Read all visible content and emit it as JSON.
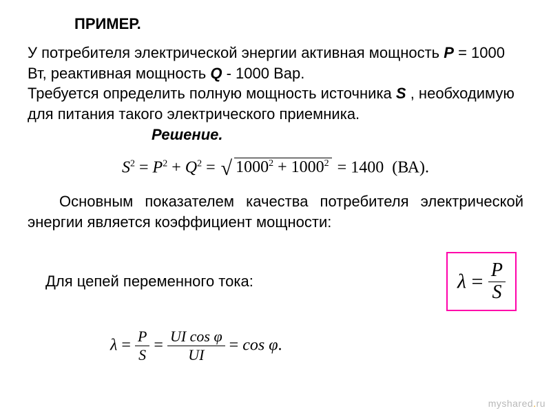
{
  "colors": {
    "text": "#000000",
    "background": "#ffffff",
    "box_border": "#ff00aa",
    "watermark_gray": "#b8b8b8",
    "watermark_orange": "#f0a000"
  },
  "typography": {
    "body_font": "Arial",
    "math_font": "Times New Roman",
    "body_size_pt": 16,
    "title_weight": "bold"
  },
  "title": "ПРИМЕР.",
  "problem": {
    "line1_a": "У потребителя электрической энергии активная мощность ",
    "P_label": "Р",
    "line1_b": " = 1000 Вт, реактивная мощность ",
    "Q_label": "Q",
    "line1_c": "  - 1000 Вар.",
    "line2_a": "Требуется определить полную мощность источника ",
    "S_label": "S",
    "line2_b": " , необходимую для питания такого электрического приемника."
  },
  "solution_label": "Решение.",
  "equation1": {
    "lhs1": "S",
    "sup1": "2",
    "eq": " = ",
    "rhs1a": "P",
    "rhs1b": "Q",
    "plus": " + ",
    "sqrt_inner_a": "1000",
    "sqrt_inner_b": "1000",
    "result": "1400",
    "unit": "(ВА)",
    "dot": "."
  },
  "para2": "Основным показателем качества потребителя электрической энергии является коэффициент мощности:",
  "para3": "Для цепей переменного тока:",
  "boxed_formula": {
    "lambda": "λ",
    "eq": " = ",
    "num": "P",
    "den": "S"
  },
  "equation2": {
    "lambda": "λ",
    "eq": " = ",
    "frac1_num": "P",
    "frac1_den": "S",
    "frac2_num": "UI cos φ",
    "frac2_den": "UI",
    "rhs": "cos φ",
    "dot": "."
  },
  "watermark": {
    "pre": "myshared",
    "dot": ".",
    "suf": "ru"
  }
}
